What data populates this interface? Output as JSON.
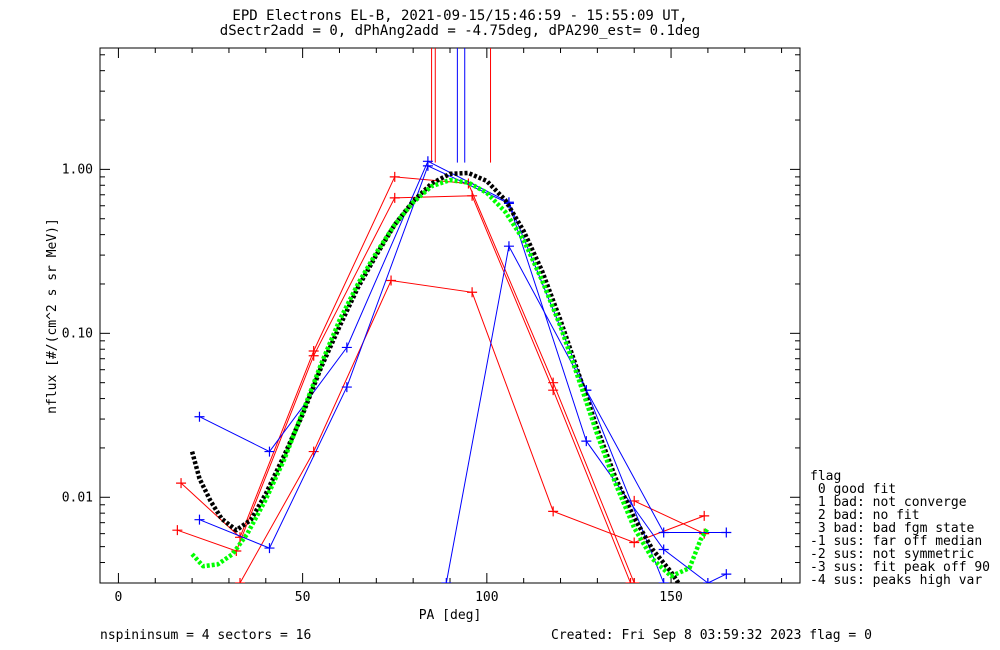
{
  "title_line1": "EPD Electrons EL-B, 2021-09-15/15:46:59 - 15:55:09 UT,",
  "title_line2": "dSectr2add = 0, dPhAng2add = -4.75deg, dPA290_est=   0.1deg",
  "footer_left": "nspininsum =  4  sectors = 16",
  "footer_right": "Created: Fri Sep  8 03:59:32 2023   flag = 0",
  "flag_legend": [
    "flag",
    " 0 good fit",
    " 1 bad: not converge",
    " 2 bad: no fit",
    " 3 bad: bad fgm state",
    "-1 sus: far off median",
    "-2 sus: not symmetric",
    "-3 sus: fit peak off 90",
    "-4 sus: peaks high var"
  ],
  "colors": {
    "red": "#ff0000",
    "blue": "#0000ff",
    "black": "#000000",
    "green": "#00ff00"
  },
  "chart_data": {
    "type": "line",
    "xlabel": "PA [deg]",
    "ylabel": "nflux [#/(cm^2 s sr MeV)]",
    "xlim": [
      -5,
      185
    ],
    "ylim": [
      0.003,
      5.5
    ],
    "yscale": "log",
    "xticks": [
      0,
      50,
      100,
      150
    ],
    "yticks": [
      0.01,
      0.1,
      1.0
    ],
    "ytick_labels": [
      "0.01",
      "0.10",
      "1.00"
    ],
    "vlines": [
      {
        "x": 85,
        "color": "red"
      },
      {
        "x": 86,
        "color": "red"
      },
      {
        "x": 92,
        "color": "blue"
      },
      {
        "x": 94,
        "color": "blue"
      },
      {
        "x": 101,
        "color": "red"
      }
    ],
    "vline_range": [
      1.1,
      5.5
    ],
    "series": [
      {
        "color": "red",
        "points": [
          [
            17,
            0.0122
          ],
          [
            33,
            0.0057
          ],
          [
            53,
            0.078
          ],
          [
            75,
            0.9
          ],
          [
            95,
            0.82
          ],
          [
            118,
            0.05
          ],
          [
            140,
            0.003
          ]
        ]
      },
      {
        "color": "red",
        "points": [
          [
            16,
            0.0063
          ],
          [
            32,
            0.0047
          ],
          [
            53,
            0.073
          ],
          [
            75,
            0.67
          ],
          [
            96,
            0.69
          ],
          [
            118,
            0.045
          ],
          [
            139,
            0.003
          ]
        ]
      },
      {
        "color": "red",
        "points": [
          [
            33,
            0.003
          ],
          [
            53,
            0.019
          ],
          [
            74,
            0.21
          ],
          [
            96,
            0.178
          ],
          [
            118,
            0.0082
          ],
          [
            140,
            0.0053
          ],
          [
            159,
            0.0077
          ]
        ]
      },
      {
        "color": "red",
        "points": [
          [
            140,
            0.0095
          ],
          [
            159,
            0.006
          ]
        ]
      },
      {
        "color": "blue",
        "points": [
          [
            22,
            0.031
          ],
          [
            41,
            0.019
          ],
          [
            62,
            0.082
          ],
          [
            84,
            1.12
          ],
          [
            106,
            0.63
          ],
          [
            127,
            0.045
          ],
          [
            148,
            0.0061
          ],
          [
            165,
            0.0061
          ]
        ]
      },
      {
        "color": "blue",
        "points": [
          [
            22,
            0.0073
          ],
          [
            41,
            0.0049
          ],
          [
            62,
            0.047
          ],
          [
            84,
            1.05
          ],
          [
            106,
            0.62
          ],
          [
            127,
            0.022
          ],
          [
            148,
            0.0048
          ],
          [
            160,
            0.003
          ],
          [
            165,
            0.0034
          ]
        ]
      },
      {
        "color": "blue",
        "points": [
          [
            89,
            0.003
          ],
          [
            106,
            0.34
          ],
          [
            127,
            0.045
          ],
          [
            148,
            0.003
          ]
        ]
      }
    ],
    "fits": [
      {
        "color": "black",
        "points": [
          [
            20,
            0.019
          ],
          [
            22,
            0.013
          ],
          [
            25,
            0.0095
          ],
          [
            28,
            0.0074
          ],
          [
            32,
            0.0063
          ],
          [
            36,
            0.0073
          ],
          [
            40,
            0.0105
          ],
          [
            45,
            0.018
          ],
          [
            50,
            0.032
          ],
          [
            55,
            0.062
          ],
          [
            60,
            0.11
          ],
          [
            65,
            0.19
          ],
          [
            70,
            0.3
          ],
          [
            75,
            0.46
          ],
          [
            80,
            0.64
          ],
          [
            85,
            0.82
          ],
          [
            90,
            0.94
          ],
          [
            95,
            0.95
          ],
          [
            100,
            0.85
          ],
          [
            105,
            0.65
          ],
          [
            110,
            0.42
          ],
          [
            115,
            0.24
          ],
          [
            120,
            0.12
          ],
          [
            125,
            0.056
          ],
          [
            130,
            0.026
          ],
          [
            135,
            0.013
          ],
          [
            140,
            0.0075
          ],
          [
            145,
            0.0048
          ],
          [
            150,
            0.0035
          ],
          [
            152,
            0.003
          ]
        ]
      },
      {
        "color": "green",
        "points": [
          [
            20,
            0.0045
          ],
          [
            23,
            0.0038
          ],
          [
            27,
            0.0039
          ],
          [
            31,
            0.0045
          ],
          [
            35,
            0.006
          ],
          [
            40,
            0.0097
          ],
          [
            45,
            0.017
          ],
          [
            50,
            0.033
          ],
          [
            55,
            0.065
          ],
          [
            60,
            0.12
          ],
          [
            65,
            0.2
          ],
          [
            70,
            0.31
          ],
          [
            75,
            0.46
          ],
          [
            80,
            0.63
          ],
          [
            85,
            0.79
          ],
          [
            90,
            0.86
          ],
          [
            95,
            0.83
          ],
          [
            100,
            0.72
          ],
          [
            105,
            0.55
          ],
          [
            110,
            0.37
          ],
          [
            115,
            0.21
          ],
          [
            120,
            0.11
          ],
          [
            125,
            0.052
          ],
          [
            130,
            0.024
          ],
          [
            135,
            0.012
          ],
          [
            140,
            0.0065
          ],
          [
            145,
            0.0042
          ],
          [
            150,
            0.0033
          ],
          [
            155,
            0.0037
          ],
          [
            158,
            0.0055
          ],
          [
            160,
            0.0065
          ]
        ]
      }
    ]
  }
}
